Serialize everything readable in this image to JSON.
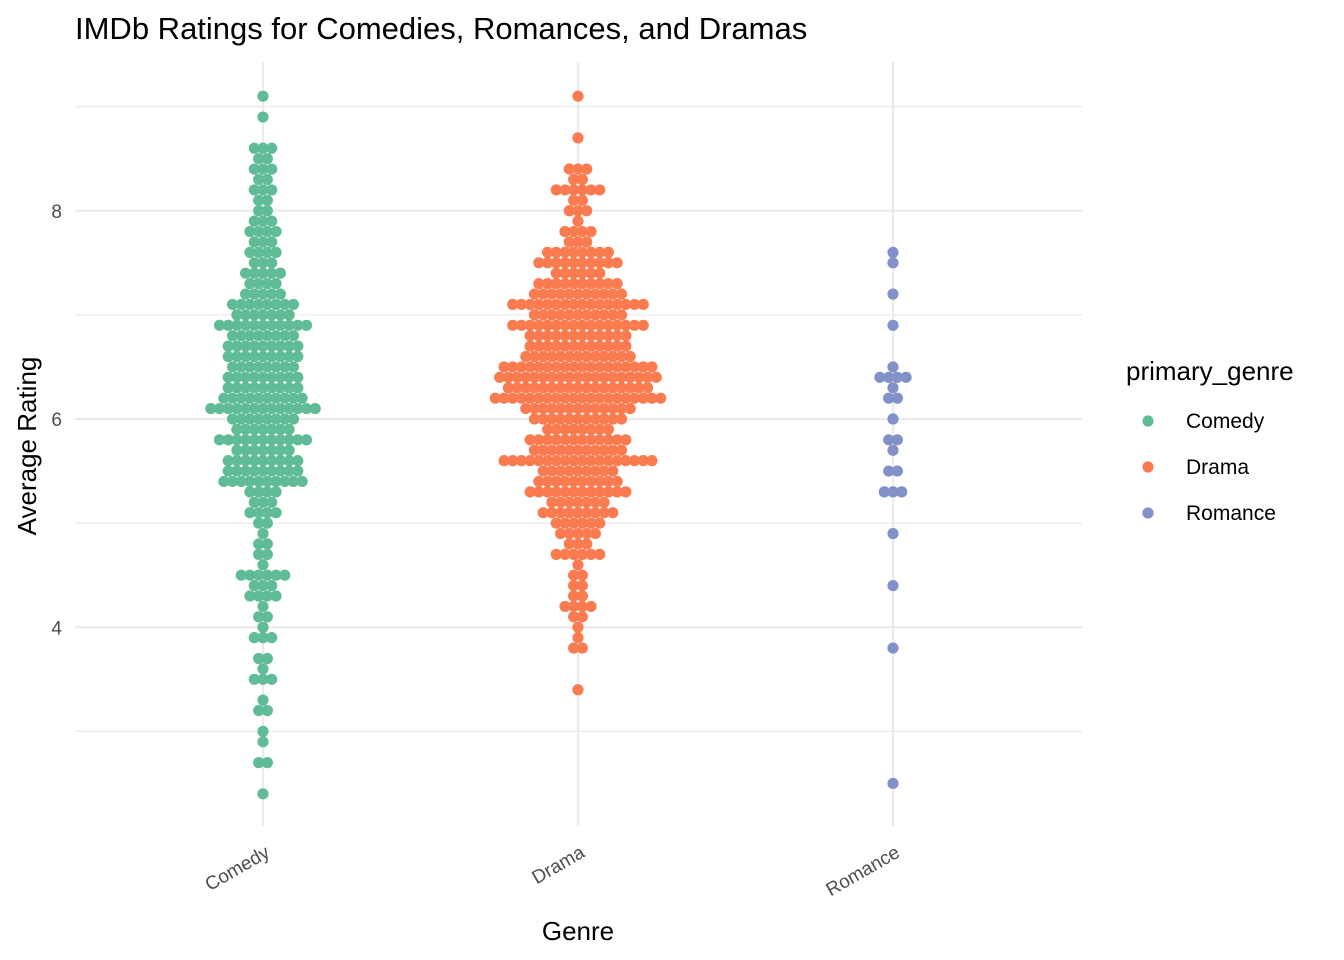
{
  "chart_data": {
    "type": "scatter",
    "subtype": "dotplot",
    "title": "IMDb Ratings for Comedies, Romances, and Dramas",
    "xlabel": "Genre",
    "ylabel": "Average Rating",
    "categories": [
      "Comedy",
      "Drama",
      "Romance"
    ],
    "yticks": [
      "4",
      "6",
      "8"
    ],
    "ylim": [
      2.1,
      9.4
    ],
    "grid": true,
    "legend": {
      "title": "primary_genre",
      "position": "right",
      "entries": [
        "Comedy",
        "Drama",
        "Romance"
      ]
    },
    "colors": {
      "Comedy": "#5fbc96",
      "Drama": "#f97b4f",
      "Romance": "#8291c7",
      "grid": "#ebebeb"
    },
    "series": [
      {
        "name": "Comedy",
        "bins": [
          [
            9.1,
            1
          ],
          [
            8.9,
            1
          ],
          [
            8.6,
            3
          ],
          [
            8.5,
            2
          ],
          [
            8.4,
            3
          ],
          [
            8.3,
            2
          ],
          [
            8.2,
            3
          ],
          [
            8.1,
            2
          ],
          [
            8.0,
            2
          ],
          [
            7.9,
            3
          ],
          [
            7.8,
            4
          ],
          [
            7.7,
            3
          ],
          [
            7.6,
            4
          ],
          [
            7.5,
            3
          ],
          [
            7.4,
            5
          ],
          [
            7.3,
            4
          ],
          [
            7.2,
            5
          ],
          [
            7.1,
            8
          ],
          [
            7.0,
            7
          ],
          [
            6.9,
            11
          ],
          [
            6.8,
            8
          ],
          [
            6.7,
            9
          ],
          [
            6.6,
            9
          ],
          [
            6.5,
            8
          ],
          [
            6.4,
            9
          ],
          [
            6.3,
            9
          ],
          [
            6.2,
            10
          ],
          [
            6.1,
            13
          ],
          [
            6.0,
            8
          ],
          [
            5.9,
            7
          ],
          [
            5.8,
            11
          ],
          [
            5.7,
            7
          ],
          [
            5.6,
            9
          ],
          [
            5.5,
            9
          ],
          [
            5.4,
            10
          ],
          [
            5.3,
            4
          ],
          [
            5.2,
            3
          ],
          [
            5.1,
            4
          ],
          [
            5.0,
            2
          ],
          [
            4.9,
            1
          ],
          [
            4.8,
            2
          ],
          [
            4.7,
            2
          ],
          [
            4.6,
            1
          ],
          [
            4.5,
            6
          ],
          [
            4.4,
            3
          ],
          [
            4.3,
            4
          ],
          [
            4.2,
            1
          ],
          [
            4.1,
            2
          ],
          [
            4.0,
            1
          ],
          [
            3.9,
            3
          ],
          [
            3.7,
            2
          ],
          [
            3.6,
            1
          ],
          [
            3.5,
            3
          ],
          [
            3.3,
            1
          ],
          [
            3.2,
            2
          ],
          [
            3.0,
            1
          ],
          [
            2.9,
            1
          ],
          [
            2.7,
            2
          ],
          [
            2.4,
            1
          ]
        ]
      },
      {
        "name": "Drama",
        "bins": [
          [
            9.1,
            1
          ],
          [
            8.7,
            1
          ],
          [
            8.4,
            3
          ],
          [
            8.3,
            2
          ],
          [
            8.2,
            6
          ],
          [
            8.1,
            2
          ],
          [
            8.0,
            3
          ],
          [
            7.9,
            1
          ],
          [
            7.8,
            4
          ],
          [
            7.7,
            3
          ],
          [
            7.6,
            8
          ],
          [
            7.5,
            10
          ],
          [
            7.4,
            6
          ],
          [
            7.3,
            10
          ],
          [
            7.2,
            11
          ],
          [
            7.1,
            16
          ],
          [
            7.0,
            11
          ],
          [
            6.9,
            16
          ],
          [
            6.8,
            12
          ],
          [
            6.7,
            12
          ],
          [
            6.6,
            13
          ],
          [
            6.5,
            18
          ],
          [
            6.4,
            19
          ],
          [
            6.3,
            17
          ],
          [
            6.2,
            20
          ],
          [
            6.1,
            13
          ],
          [
            6.0,
            11
          ],
          [
            5.9,
            8
          ],
          [
            5.8,
            12
          ],
          [
            5.7,
            11
          ],
          [
            5.6,
            18
          ],
          [
            5.5,
            9
          ],
          [
            5.4,
            10
          ],
          [
            5.3,
            12
          ],
          [
            5.2,
            7
          ],
          [
            5.1,
            9
          ],
          [
            5.0,
            6
          ],
          [
            4.9,
            5
          ],
          [
            4.8,
            3
          ],
          [
            4.7,
            6
          ],
          [
            4.6,
            1
          ],
          [
            4.5,
            2
          ],
          [
            4.4,
            2
          ],
          [
            4.3,
            2
          ],
          [
            4.2,
            4
          ],
          [
            4.1,
            2
          ],
          [
            4.0,
            1
          ],
          [
            3.9,
            1
          ],
          [
            3.8,
            2
          ],
          [
            3.4,
            1
          ]
        ]
      },
      {
        "name": "Romance",
        "bins": [
          [
            7.6,
            1
          ],
          [
            7.5,
            1
          ],
          [
            7.2,
            1
          ],
          [
            6.9,
            1
          ],
          [
            6.5,
            1
          ],
          [
            6.4,
            4
          ],
          [
            6.3,
            1
          ],
          [
            6.2,
            2
          ],
          [
            6.0,
            1
          ],
          [
            5.8,
            2
          ],
          [
            5.7,
            1
          ],
          [
            5.5,
            2
          ],
          [
            5.3,
            3
          ],
          [
            4.9,
            1
          ],
          [
            4.4,
            1
          ],
          [
            3.8,
            1
          ],
          [
            2.5,
            1
          ]
        ]
      }
    ]
  }
}
